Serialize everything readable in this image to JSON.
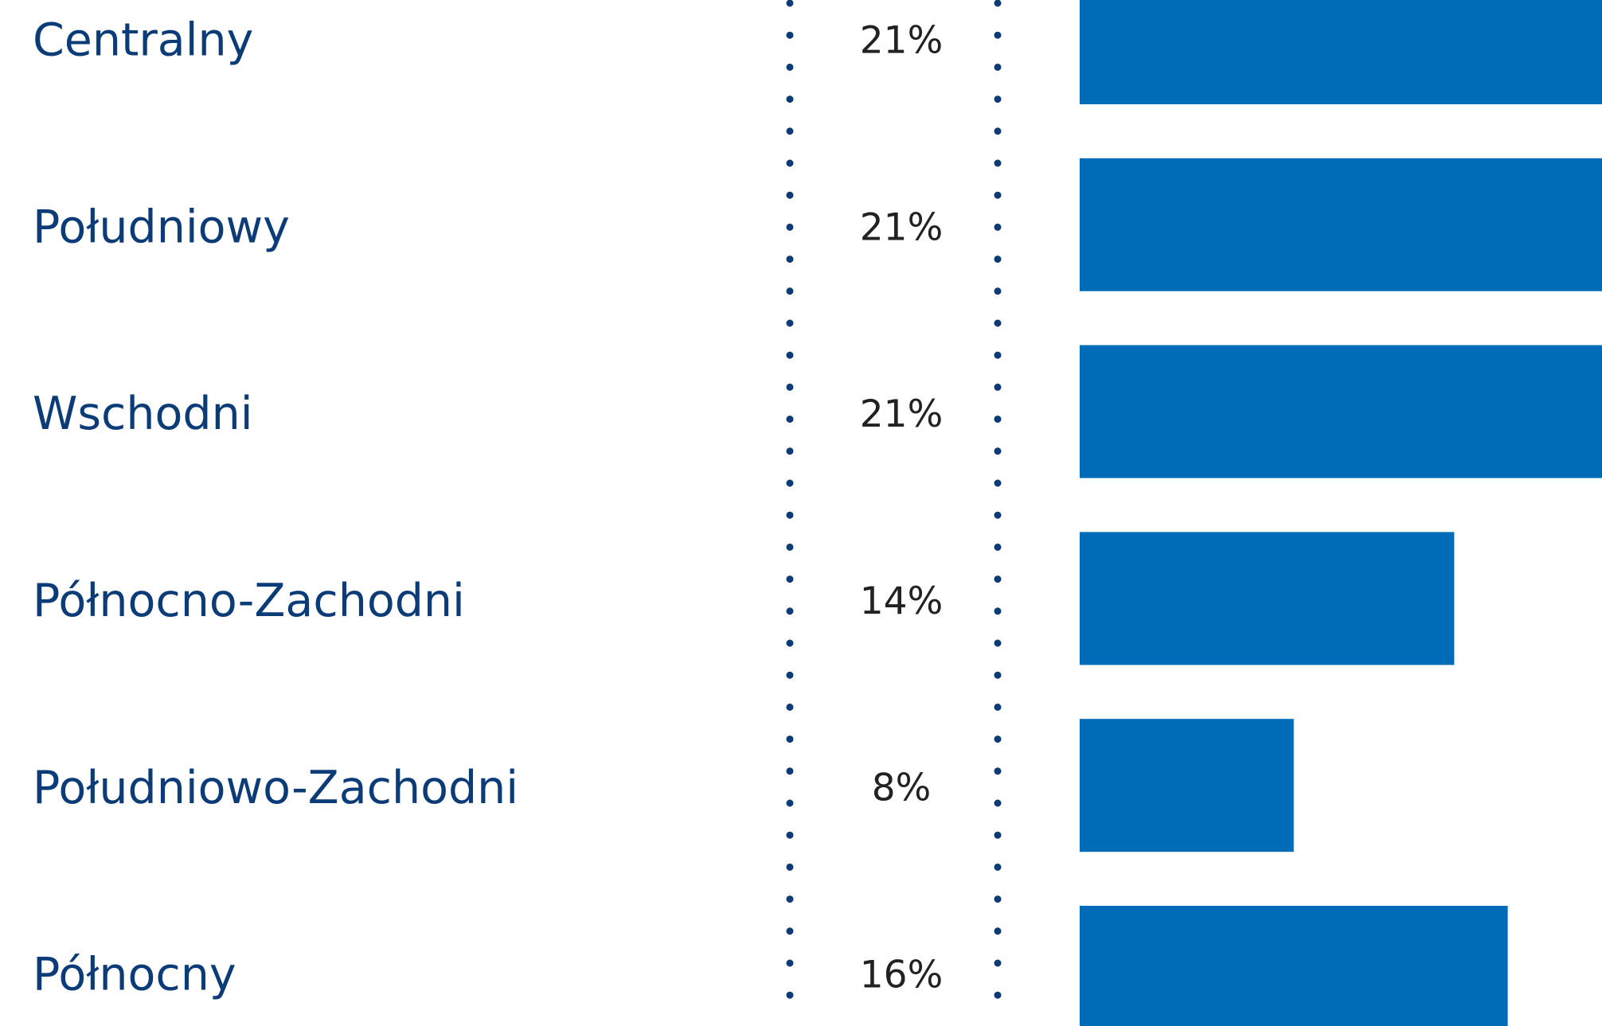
{
  "chart_data": {
    "type": "bar",
    "orientation": "horizontal",
    "categories": [
      "Centralny",
      "Południowy",
      "Wschodni",
      "Północno-Zachodni",
      "Południowo-Zachodni",
      "Północny"
    ],
    "values": [
      21,
      21,
      21,
      14,
      8,
      16
    ],
    "value_labels": [
      "21%",
      "21%",
      "21%",
      "14%",
      "8%",
      "16%"
    ],
    "color": "#006bb6"
  }
}
